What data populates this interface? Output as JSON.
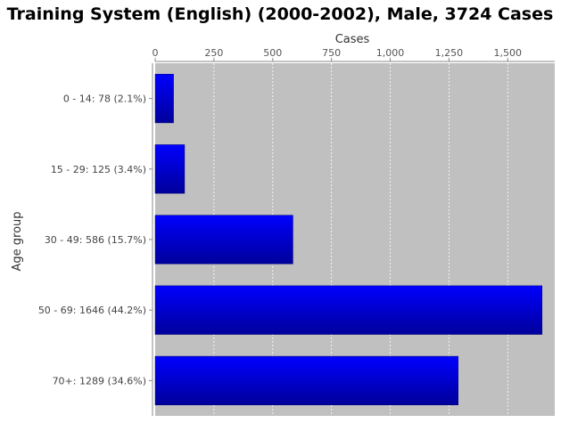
{
  "chart_data": {
    "type": "bar",
    "orientation": "horizontal",
    "title": "Training System (English) (2000-2002), Male, 3724 Cases",
    "xlabel": "Cases",
    "ylabel": "Age group",
    "xlim": [
      0,
      1700
    ],
    "x_ticks": [
      0,
      250,
      500,
      750,
      1000,
      1250,
      1500
    ],
    "x_tick_labels": [
      "0",
      "250",
      "500",
      "750",
      "1,000",
      "1,250",
      "1,500"
    ],
    "x_axis_position": "top",
    "grid": "vertical dashed",
    "categories": [
      "0 - 14: 78 (2.1%)",
      "15 - 29: 125 (3.4%)",
      "30 - 49: 586 (15.7%)",
      "50 - 69: 1646 (44.2%)",
      "70+: 1289 (34.6%)"
    ],
    "values": [
      78,
      125,
      586,
      1646,
      1289
    ],
    "colors": {
      "plot_background": "#c0c0c0",
      "bar_fill_top": "#0000ff",
      "bar_fill_bottom": "#00009a"
    }
  }
}
